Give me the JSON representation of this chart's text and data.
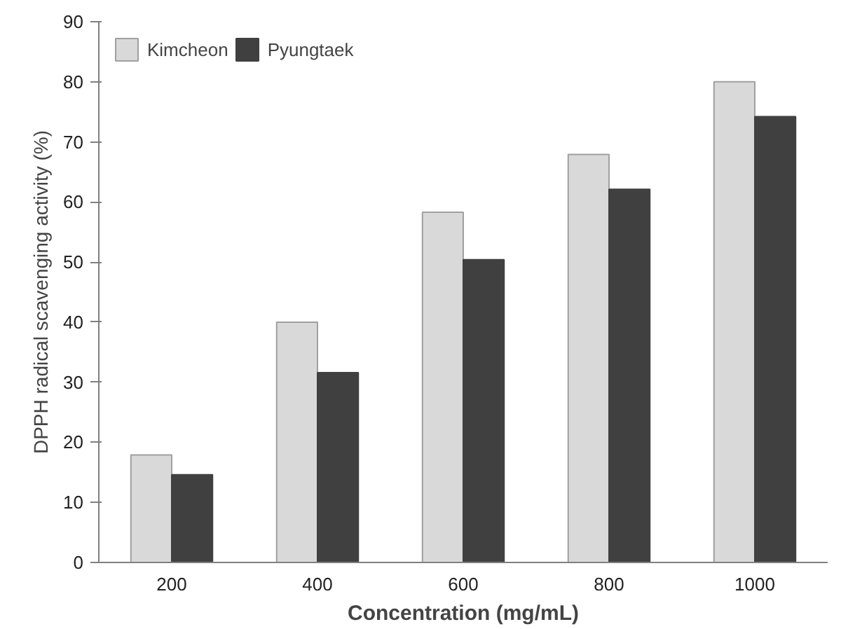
{
  "chart_data": {
    "type": "bar",
    "xlabel": "Concentration (mg/mL)",
    "ylabel": "DPPH radical scavenging activity (%)",
    "categories": [
      "200",
      "400",
      "600",
      "800",
      "1000"
    ],
    "series": [
      {
        "name": "Kimcheon",
        "color": "#d9d9d9",
        "values": [
          17.9,
          40.0,
          58.3,
          67.9,
          80.0
        ]
      },
      {
        "name": "Pyungtaek",
        "color": "#404040",
        "values": [
          14.6,
          31.6,
          50.4,
          62.1,
          74.2
        ]
      }
    ],
    "ylim": [
      0,
      90
    ],
    "yticks": [
      0,
      10,
      20,
      30,
      40,
      50,
      60,
      70,
      80,
      90
    ],
    "grid": false,
    "legend": "top left"
  }
}
